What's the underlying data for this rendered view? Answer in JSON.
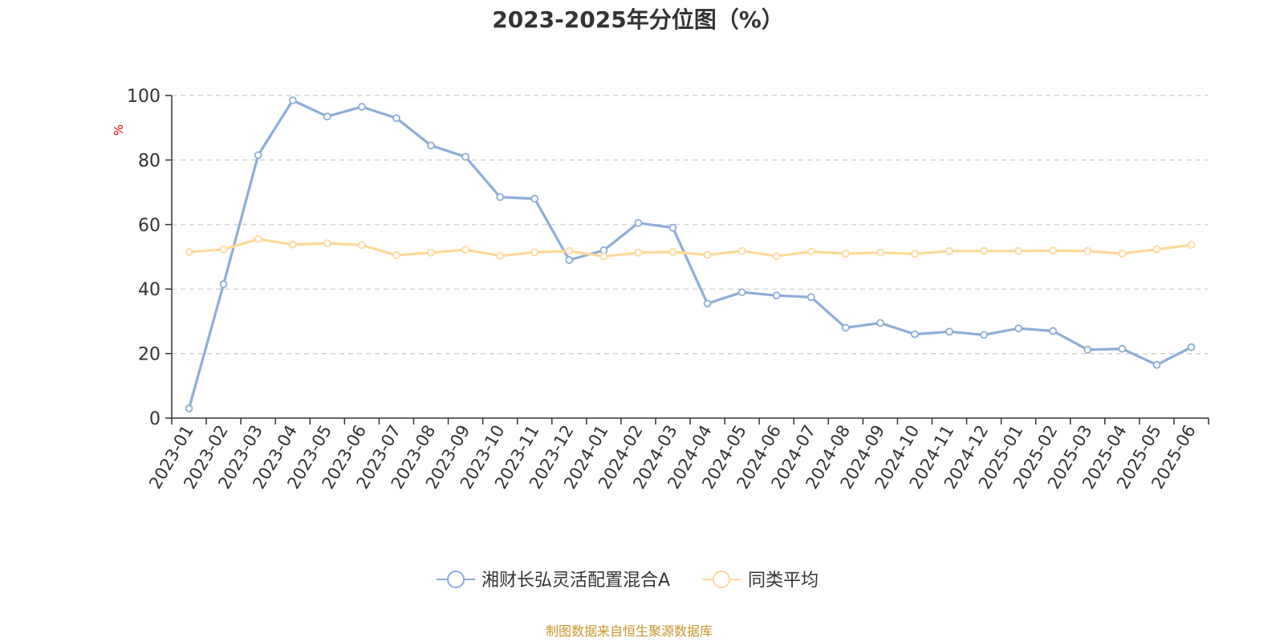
{
  "chart_data": {
    "type": "line",
    "title": "2023-2025年分位图（%）",
    "ylabel": "%",
    "ylim": [
      0,
      100
    ],
    "yticks": [
      "0",
      "20",
      "40",
      "60",
      "80",
      "100"
    ],
    "grid": true,
    "legend_position": "bottom",
    "categories": [
      "2023-01",
      "2023-02",
      "2023-03",
      "2023-04",
      "2023-05",
      "2023-06",
      "2023-07",
      "2023-08",
      "2023-09",
      "2023-10",
      "2023-11",
      "2023-12",
      "2024-01",
      "2024-02",
      "2024-03",
      "2024-04",
      "2024-05",
      "2024-06",
      "2024-07",
      "2024-08",
      "2024-09",
      "2024-10",
      "2024-11",
      "2024-12",
      "2025-01",
      "2025-02",
      "2025-03",
      "2025-04",
      "2025-05",
      "2025-06"
    ],
    "series": [
      {
        "name": "湘财长弘灵活配置混合A",
        "color": "#8eadd9",
        "values": [
          3,
          41.5,
          81.5,
          98.5,
          93.5,
          96.5,
          93,
          84.5,
          81,
          68.5,
          68,
          49,
          52,
          60.5,
          59,
          35.5,
          39,
          38,
          37.5,
          28,
          29.5,
          26,
          26.8,
          25.8,
          27.8,
          27,
          21.2,
          21.5,
          16.5,
          22
        ]
      },
      {
        "name": "同类平均",
        "color": "#fdd99a",
        "values": [
          51.5,
          52.3,
          55.5,
          53.8,
          54.2,
          53.6,
          50.5,
          51.3,
          52.2,
          50.3,
          51.4,
          51.8,
          50.1,
          51.3,
          51.5,
          50.6,
          51.8,
          50.2,
          51.6,
          51,
          51.3,
          50.9,
          51.8,
          51.8,
          51.8,
          51.9,
          51.8,
          51,
          52.3,
          53.7
        ]
      }
    ]
  },
  "colors": {
    "unit_label": "#e60000",
    "source_text": "#c8962a",
    "axis": "#333333",
    "grid": "#cccccc"
  },
  "footer": {
    "source": "制图数据来自恒生聚源数据库"
  }
}
